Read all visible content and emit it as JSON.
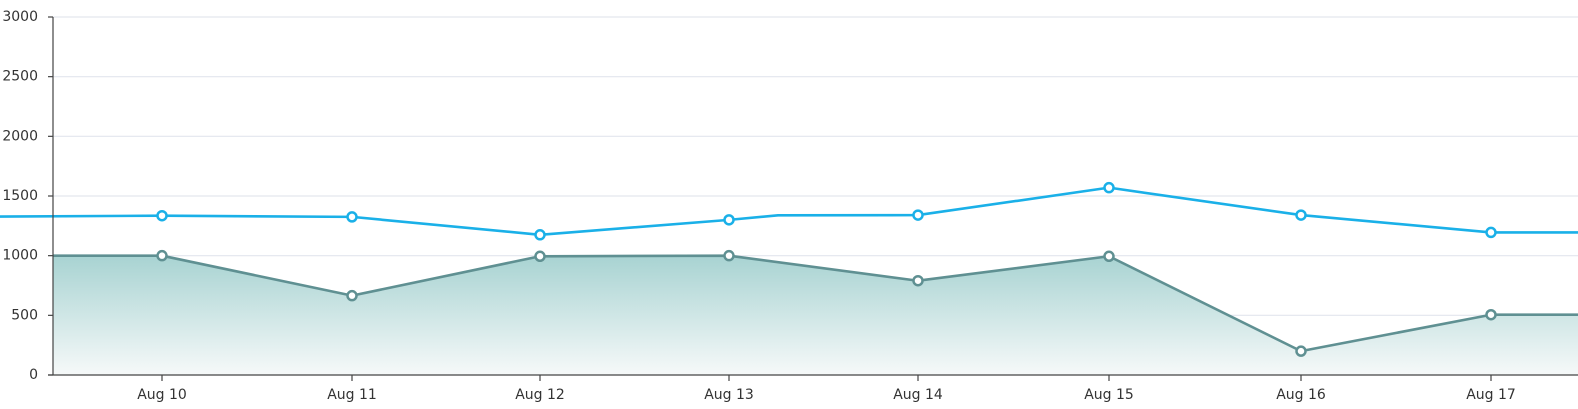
{
  "chart_data": {
    "type": "line",
    "categories": [
      "Aug 10",
      "Aug 11",
      "Aug 12",
      "Aug 13",
      "Aug 14",
      "Aug 15",
      "Aug 16",
      "Aug 17"
    ],
    "ylim": [
      0,
      3000
    ],
    "yticks": [
      0,
      500,
      1000,
      1500,
      2000,
      2500,
      3000
    ],
    "grid": true,
    "series": [
      {
        "color": "#1ab0e8",
        "values": [
          1335,
          1325,
          1175,
          1300,
          1340,
          1570,
          1340,
          1195
        ],
        "path_values": [
          1328,
          1335,
          1325,
          1175,
          1300,
          1338,
          1340,
          1570,
          1340,
          1195,
          1195
        ],
        "area": false
      },
      {
        "color": "#5f9092",
        "values": [
          1000,
          665,
          995,
          1000,
          790,
          995,
          200,
          505
        ],
        "path_values": [
          1000,
          1000,
          665,
          995,
          1000,
          790,
          995,
          200,
          505,
          505
        ],
        "area": true,
        "fill_top": "#a8d3d2",
        "fill_bottom": "#f6f9f9"
      }
    ]
  }
}
